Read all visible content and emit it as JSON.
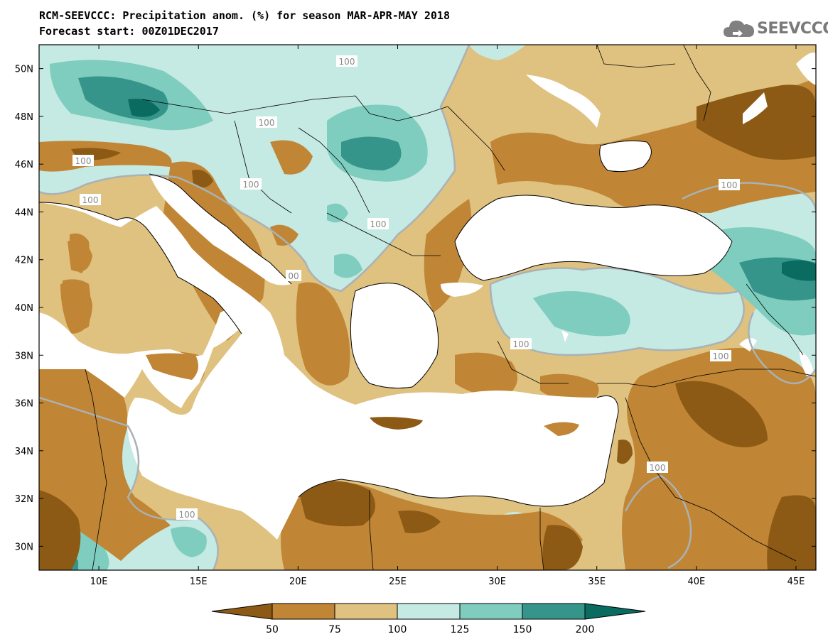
{
  "title": {
    "line1": "RCM-SEEVCCC: Precipitation anom. (%) for season MAR-APR-MAY 2018",
    "line2": "Forecast start: 00Z01DEC2017"
  },
  "logo": {
    "text": "SEEVCCC",
    "icon": "cloud-icon"
  },
  "map": {
    "lon_range": [
      7,
      46
    ],
    "lat_range": [
      29,
      51
    ],
    "lat_ticks": [
      "50N",
      "48N",
      "46N",
      "44N",
      "42N",
      "40N",
      "38N",
      "36N",
      "34N",
      "32N",
      "30N"
    ],
    "lon_ticks": [
      "10E",
      "15E",
      "20E",
      "25E",
      "30E",
      "35E",
      "40E",
      "45E"
    ],
    "contour_labels": [
      "100",
      "100",
      "100",
      "100",
      "100",
      "100",
      "100",
      "100",
      "100",
      "00",
      "100",
      "100",
      "100"
    ]
  },
  "legend": {
    "labels": [
      "50",
      "75",
      "100",
      "125",
      "150",
      "200"
    ],
    "colors": [
      "#8c5a15",
      "#c08535",
      "#dfc180",
      "#c5e9e3",
      "#7ecdbe",
      "#36958a",
      "#0a6b60"
    ]
  },
  "colors": {
    "land_base": "#dfc180",
    "sea": "#ffffff",
    "contour_line": "#a9b2b6"
  }
}
